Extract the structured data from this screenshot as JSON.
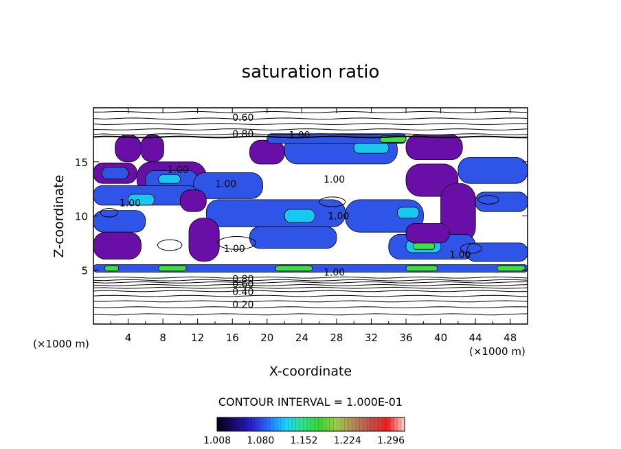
{
  "chart_data": {
    "type": "heatmap",
    "title": "saturation ratio",
    "xlabel": "X-coordinate",
    "ylabel": "Z-coordinate",
    "x_unit": "(×1000 m)",
    "z_unit": "(×1000 m)",
    "xlim": [
      0,
      50
    ],
    "ylim": [
      0,
      20
    ],
    "x_ticks": [
      4,
      8,
      12,
      16,
      20,
      24,
      28,
      32,
      36,
      40,
      44,
      48
    ],
    "y_ticks": [
      5,
      10,
      15
    ],
    "contour_interval_text": "CONTOUR INTERVAL = 1.000E-01",
    "colorbar": {
      "min": 1.0,
      "max": 1.35,
      "tick_labels": [
        "1.008",
        "1.080",
        "1.152",
        "1.224",
        "1.296"
      ],
      "colors": [
        "#050018",
        "#1a0a6e",
        "#2a1ec8",
        "#2a6cff",
        "#19d2ff",
        "#2fe08a",
        "#3ad632",
        "#9fcc46",
        "#b4885a",
        "#c0504a",
        "#ee2020",
        "#ffd0d0"
      ]
    },
    "contour_labels": [
      {
        "text": "0.60",
        "x": 16.0,
        "z": 19.1
      },
      {
        "text": "0.80",
        "x": 16.0,
        "z": 17.6
      },
      {
        "text": "1.00",
        "x": 22.5,
        "z": 17.5
      },
      {
        "text": "1.00",
        "x": 8.5,
        "z": 14.3
      },
      {
        "text": "1.00",
        "x": 14.0,
        "z": 13.0
      },
      {
        "text": "1.00",
        "x": 26.5,
        "z": 13.4
      },
      {
        "text": "1.00",
        "x": 3.0,
        "z": 11.2
      },
      {
        "text": "1.00",
        "x": 27.0,
        "z": 10.0
      },
      {
        "text": "1.00",
        "x": 15.0,
        "z": 7.0
      },
      {
        "text": "1.00",
        "x": 26.5,
        "z": 4.8
      },
      {
        "text": "1.00",
        "x": 41.0,
        "z": 6.4
      },
      {
        "text": "0.80",
        "x": 16.0,
        "z": 4.2
      },
      {
        "text": "0.60",
        "x": 16.0,
        "z": 3.7
      },
      {
        "text": "0.40",
        "x": 16.0,
        "z": 3.0
      },
      {
        "text": "0.20",
        "x": 16.0,
        "z": 1.8
      }
    ],
    "iso_lines_z": [
      0.9,
      1.55,
      2.1,
      2.6,
      3.05,
      3.35,
      3.6,
      3.85,
      4.05,
      4.3,
      17.3,
      17.55,
      18.0,
      18.5,
      19.0,
      19.6
    ],
    "moist_regions": [
      {
        "level": 1.01,
        "x": 0.0,
        "z": 13.0,
        "w": 5.0,
        "h": 1.9
      },
      {
        "level": 1.1,
        "x": 1.0,
        "z": 13.4,
        "w": 3.0,
        "h": 1.1
      },
      {
        "level": 1.01,
        "x": 2.5,
        "z": 15.0,
        "w": 3.0,
        "h": 2.5
      },
      {
        "level": 1.01,
        "x": 5.5,
        "z": 15.0,
        "w": 2.6,
        "h": 2.5
      },
      {
        "level": 1.01,
        "x": 5.0,
        "z": 12.0,
        "w": 8.0,
        "h": 3.0
      },
      {
        "level": 1.1,
        "x": 6.0,
        "z": 12.4,
        "w": 6.0,
        "h": 1.8
      },
      {
        "level": 1.15,
        "x": 7.5,
        "z": 13.0,
        "w": 2.5,
        "h": 0.8
      },
      {
        "level": 1.1,
        "x": 11.5,
        "z": 11.6,
        "w": 8.0,
        "h": 2.4
      },
      {
        "level": 1.01,
        "x": 18.0,
        "z": 14.8,
        "w": 4.0,
        "h": 2.2
      },
      {
        "level": 1.1,
        "x": 22.0,
        "z": 14.8,
        "w": 13.0,
        "h": 2.6
      },
      {
        "level": 1.15,
        "x": 30.0,
        "z": 15.8,
        "w": 4.0,
        "h": 1.0
      },
      {
        "level": 1.1,
        "x": 20.0,
        "z": 16.7,
        "w": 16.0,
        "h": 0.9
      },
      {
        "level": 1.18,
        "x": 33.0,
        "z": 16.8,
        "w": 3.0,
        "h": 0.6
      },
      {
        "level": 1.01,
        "x": 36.0,
        "z": 15.2,
        "w": 6.5,
        "h": 2.3
      },
      {
        "level": 1.1,
        "x": 42.0,
        "z": 13.0,
        "w": 8.0,
        "h": 2.4
      },
      {
        "level": 1.01,
        "x": 36.0,
        "z": 11.8,
        "w": 6.0,
        "h": 3.0
      },
      {
        "level": 1.1,
        "x": 0.0,
        "z": 11.0,
        "w": 12.0,
        "h": 1.8
      },
      {
        "level": 1.15,
        "x": 4.0,
        "z": 11.0,
        "w": 3.0,
        "h": 1.0
      },
      {
        "level": 1.01,
        "x": 10.0,
        "z": 10.4,
        "w": 3.0,
        "h": 2.0
      },
      {
        "level": 1.1,
        "x": 13.0,
        "z": 9.0,
        "w": 16.0,
        "h": 2.5
      },
      {
        "level": 1.15,
        "x": 22.0,
        "z": 9.4,
        "w": 3.5,
        "h": 1.2
      },
      {
        "level": 1.1,
        "x": 29.0,
        "z": 8.5,
        "w": 9.0,
        "h": 3.0
      },
      {
        "level": 1.15,
        "x": 35.0,
        "z": 9.8,
        "w": 2.5,
        "h": 1.0
      },
      {
        "level": 1.01,
        "x": 40.0,
        "z": 7.5,
        "w": 4.0,
        "h": 5.5
      },
      {
        "level": 1.1,
        "x": 44.0,
        "z": 10.4,
        "w": 6.0,
        "h": 1.8
      },
      {
        "level": 1.1,
        "x": 0.0,
        "z": 8.5,
        "w": 6.0,
        "h": 2.0
      },
      {
        "level": 1.01,
        "x": 0.0,
        "z": 6.0,
        "w": 5.5,
        "h": 2.5
      },
      {
        "level": 1.01,
        "x": 11.0,
        "z": 5.8,
        "w": 3.5,
        "h": 4.0
      },
      {
        "level": 1.1,
        "x": 18.0,
        "z": 7.0,
        "w": 10.0,
        "h": 2.0
      },
      {
        "level": 1.1,
        "x": 34.0,
        "z": 6.0,
        "w": 10.0,
        "h": 2.3
      },
      {
        "level": 1.15,
        "x": 36.0,
        "z": 6.6,
        "w": 4.0,
        "h": 1.2
      },
      {
        "level": 1.2,
        "x": 36.8,
        "z": 6.9,
        "w": 2.5,
        "h": 0.6
      },
      {
        "level": 1.01,
        "x": 36.0,
        "z": 7.5,
        "w": 5.0,
        "h": 1.8
      },
      {
        "level": 1.1,
        "x": 43.0,
        "z": 5.8,
        "w": 7.0,
        "h": 1.7
      },
      {
        "level": 1.1,
        "x": 0.0,
        "z": 4.8,
        "w": 50.0,
        "h": 0.7
      },
      {
        "level": 1.2,
        "x": 1.3,
        "z": 4.9,
        "w": 1.6,
        "h": 0.5
      },
      {
        "level": 1.2,
        "x": 7.5,
        "z": 4.9,
        "w": 3.2,
        "h": 0.5
      },
      {
        "level": 1.2,
        "x": 21.0,
        "z": 4.9,
        "w": 4.2,
        "h": 0.5
      },
      {
        "level": 1.2,
        "x": 36.0,
        "z": 4.9,
        "w": 3.6,
        "h": 0.5
      },
      {
        "level": 1.2,
        "x": 46.5,
        "z": 4.9,
        "w": 3.2,
        "h": 0.5
      }
    ],
    "small_contours": [
      {
        "x": 27.5,
        "z": 11.3,
        "rx": 1.5,
        "rz": 0.45
      },
      {
        "x": 16.5,
        "z": 7.5,
        "rx": 2.2,
        "rz": 0.6
      },
      {
        "x": 1.8,
        "z": 10.3,
        "rx": 1.0,
        "rz": 0.4
      },
      {
        "x": 45.5,
        "z": 11.5,
        "rx": 1.2,
        "rz": 0.4
      },
      {
        "x": 8.8,
        "z": 7.3,
        "rx": 1.4,
        "rz": 0.5
      },
      {
        "x": 43.5,
        "z": 7.0,
        "rx": 1.2,
        "rz": 0.45
      }
    ]
  }
}
